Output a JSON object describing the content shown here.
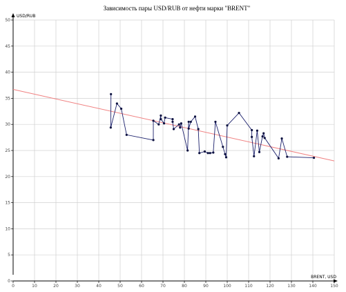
{
  "chart_data": {
    "type": "scatter",
    "title": "Зависимость пары USD/RUB от нефти марки \"BRENT\"",
    "xlabel": "BRENT, USD",
    "ylabel": "USD/RUB",
    "xlim": [
      0,
      150
    ],
    "ylim": [
      0,
      50
    ],
    "x_ticks": [
      "0",
      "10",
      "20",
      "30",
      "40",
      "50",
      "60",
      "70",
      "80",
      "90",
      "100",
      "110",
      "120",
      "130",
      "140",
      "150"
    ],
    "y_ticks": [
      "0",
      "5",
      "10",
      "15",
      "20",
      "25",
      "30",
      "35",
      "40",
      "45",
      "50"
    ],
    "grid": true,
    "colors": {
      "series": "#1a1f6b",
      "points": "#0d1240",
      "trend": "#f08080",
      "grid": "#d0d0d0"
    },
    "series": [
      {
        "values": [
          [
            45.7,
            35.8
          ],
          [
            45.6,
            29.4
          ],
          [
            48.5,
            34.0
          ],
          [
            50.5,
            33.0
          ],
          [
            53.0,
            28.0
          ],
          [
            65.5,
            27.0
          ],
          [
            65.5,
            30.7
          ],
          [
            68.0,
            30.0
          ],
          [
            69.0,
            31.7
          ],
          [
            69.0,
            31.0
          ],
          [
            70.5,
            30.2
          ],
          [
            71.0,
            31.3
          ],
          [
            74.5,
            31.0
          ],
          [
            74.5,
            30.5
          ],
          [
            75.0,
            29.1
          ],
          [
            77.5,
            30.0
          ],
          [
            78.0,
            29.4
          ],
          [
            78.5,
            30.2
          ],
          [
            81.5,
            25.0
          ],
          [
            82.0,
            30.5
          ],
          [
            82.0,
            29.2
          ],
          [
            83.0,
            30.5
          ],
          [
            85.0,
            31.5
          ],
          [
            86.5,
            29.1
          ],
          [
            87.0,
            24.5
          ],
          [
            89.5,
            24.8
          ],
          [
            91.0,
            24.5
          ],
          [
            92.0,
            24.5
          ],
          [
            93.5,
            24.6
          ],
          [
            94.5,
            30.5
          ],
          [
            98.0,
            25.7
          ],
          [
            99.0,
            24.3
          ],
          [
            99.5,
            23.7
          ],
          [
            100.0,
            29.8
          ],
          [
            105.5,
            32.2
          ],
          [
            111.5,
            28.9
          ],
          [
            111.5,
            27.6
          ],
          [
            112.5,
            23.9
          ],
          [
            114.0,
            28.8
          ],
          [
            115.0,
            24.7
          ],
          [
            116.5,
            27.7
          ],
          [
            117.0,
            28.3
          ],
          [
            117.5,
            27.4
          ],
          [
            124.0,
            23.5
          ],
          [
            125.5,
            27.3
          ],
          [
            128.0,
            23.8
          ],
          [
            140.5,
            23.6
          ]
        ]
      }
    ],
    "trendline": {
      "type": "linear",
      "points": [
        [
          0,
          36.7
        ],
        [
          150,
          23.0
        ]
      ]
    }
  }
}
